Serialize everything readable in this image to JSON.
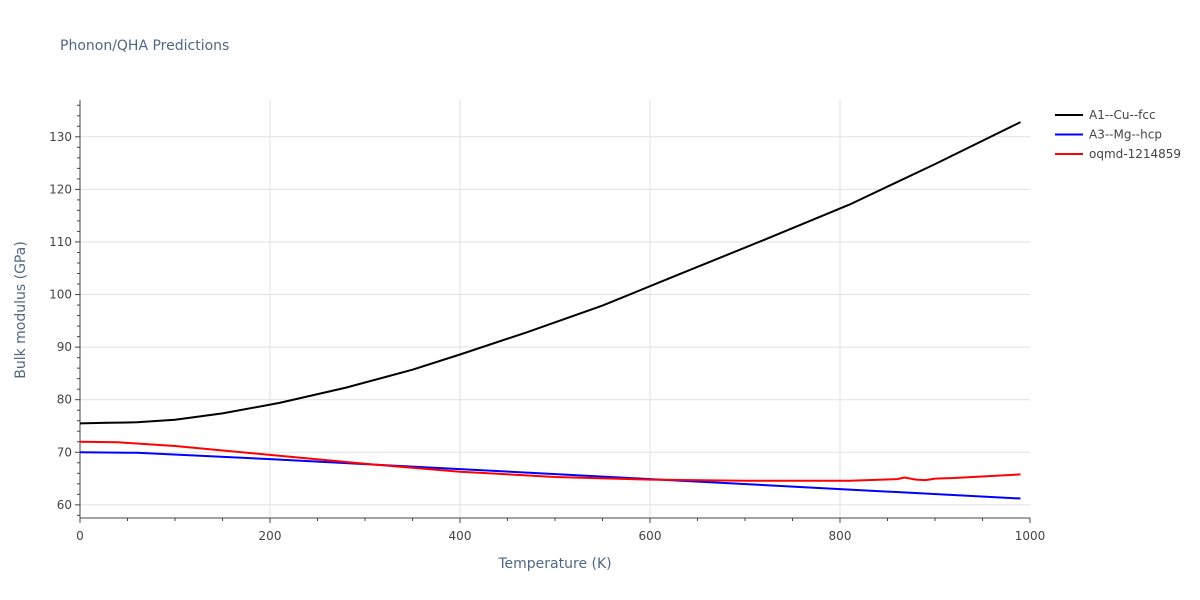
{
  "chart_data": {
    "type": "line",
    "title": "Phonon/QHA Predictions",
    "xlabel": "Temperature (K)",
    "ylabel": "Bulk modulus (GPa)",
    "xlim": [
      0,
      1000
    ],
    "ylim": [
      57.5,
      137
    ],
    "x_ticks": [
      0,
      200,
      400,
      600,
      800,
      1000
    ],
    "y_ticks": [
      60,
      70,
      80,
      90,
      100,
      110,
      120,
      130
    ],
    "grid": true,
    "legend_position": "top-right",
    "series": [
      {
        "name": "A1--Cu--fcc",
        "color": "#000000",
        "x": [
          0,
          30,
          60,
          100,
          150,
          210,
          280,
          350,
          400,
          470,
          550,
          630,
          720,
          810,
          900,
          990
        ],
        "y": [
          75.5,
          75.6,
          75.7,
          76.2,
          77.4,
          79.4,
          82.3,
          85.7,
          88.6,
          92.8,
          97.9,
          103.8,
          110.4,
          117.1,
          124.8,
          132.8
        ]
      },
      {
        "name": "A3--Mg--hcp",
        "color": "#0000ff",
        "x": [
          0,
          60,
          200,
          400,
          600,
          800,
          990
        ],
        "y": [
          70.0,
          69.9,
          68.7,
          66.8,
          64.9,
          63.0,
          61.2
        ]
      },
      {
        "name": "oqmd-1214859",
        "color": "#ff0000",
        "x": [
          0,
          40,
          100,
          200,
          300,
          400,
          500,
          600,
          700,
          810,
          860,
          868,
          880,
          890,
          900,
          920,
          990
        ],
        "y": [
          72.0,
          71.9,
          71.2,
          69.5,
          67.8,
          66.3,
          65.3,
          64.8,
          64.6,
          64.6,
          64.9,
          65.2,
          64.8,
          64.7,
          65.0,
          65.1,
          65.8
        ]
      }
    ]
  }
}
